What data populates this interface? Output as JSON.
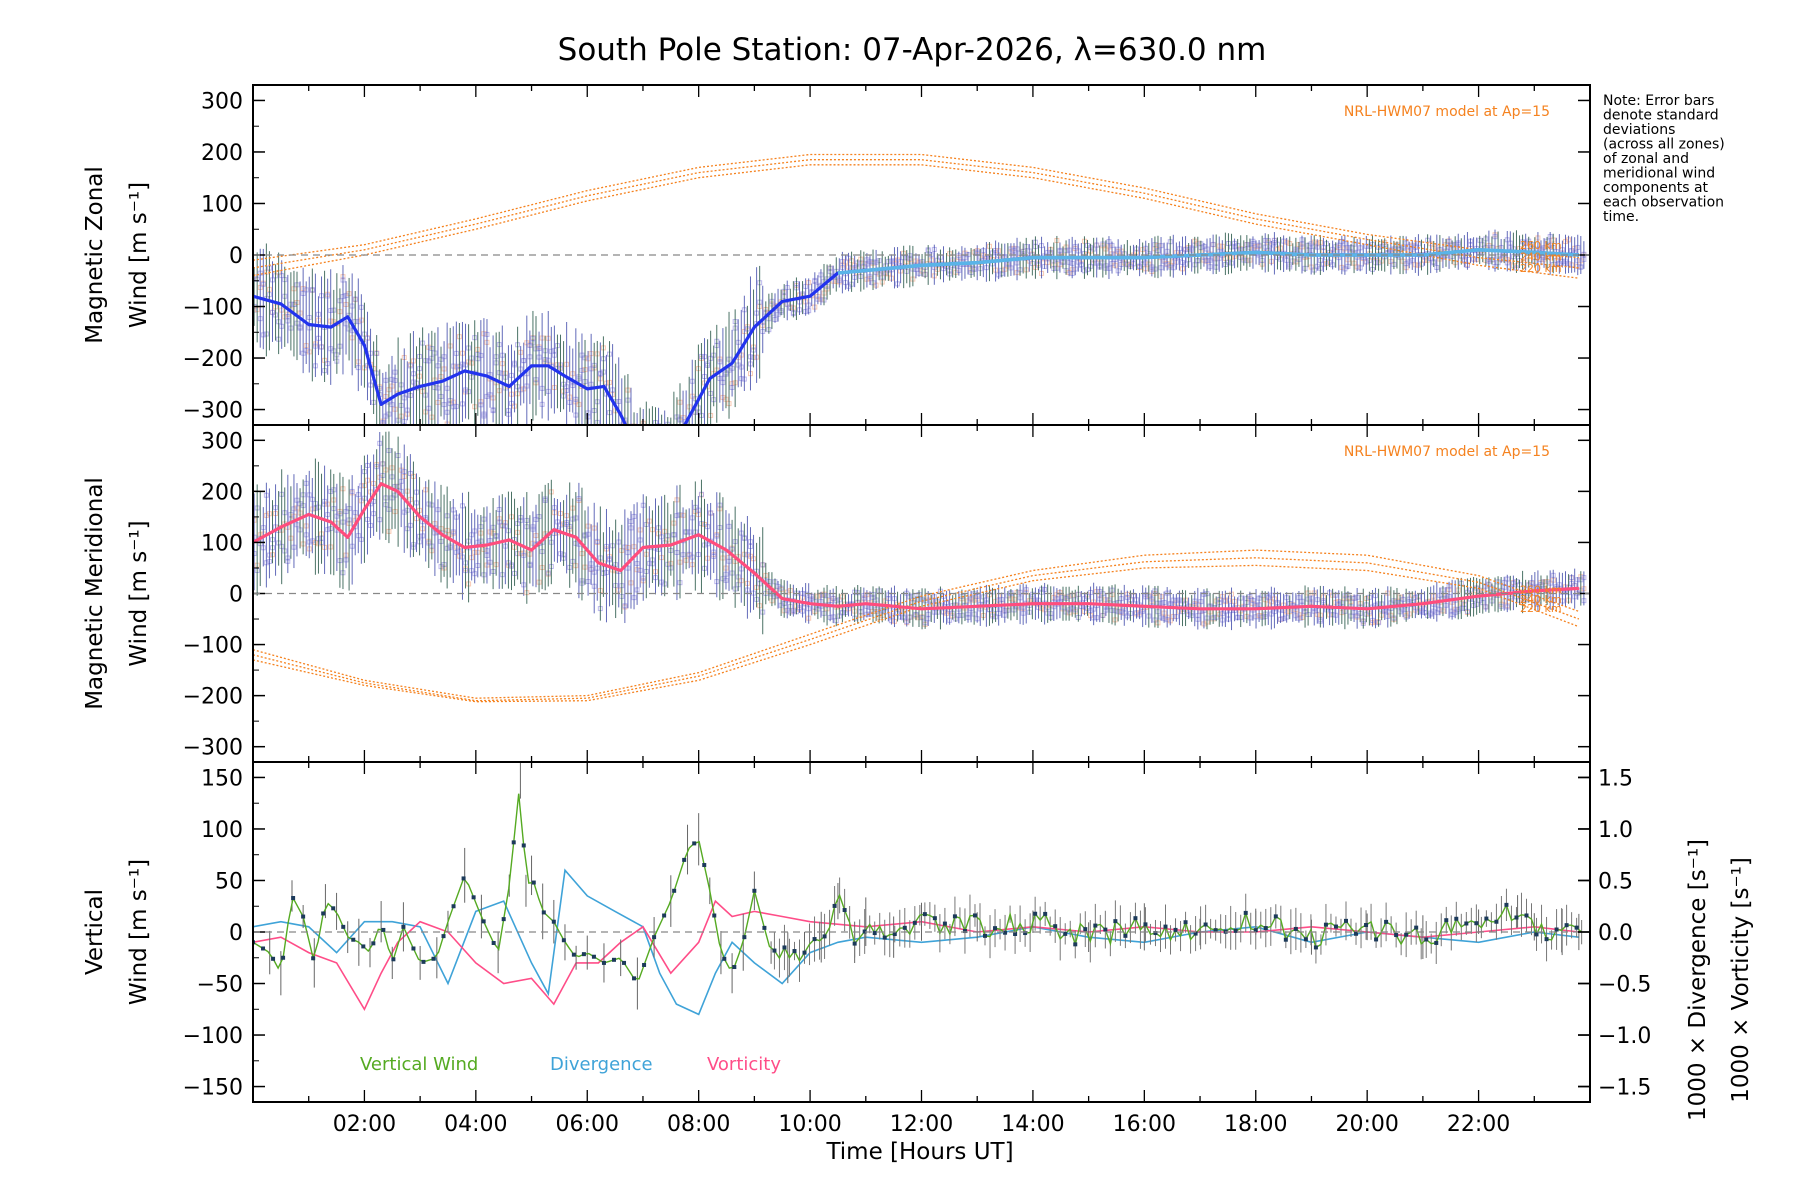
{
  "chart_data": {
    "type": "line",
    "title": "South Pole Station: 07-Apr-2026, λ=630.0 nm",
    "xlabel": "Time [Hours UT]",
    "xlim": [
      0,
      24
    ],
    "xticks": [
      2,
      4,
      6,
      8,
      10,
      12,
      14,
      16,
      18,
      20,
      22
    ],
    "xtick_labels": [
      "02:00",
      "04:00",
      "06:00",
      "08:00",
      "10:00",
      "12:00",
      "14:00",
      "16:00",
      "18:00",
      "20:00",
      "22:00"
    ],
    "note": [
      "Note: Error bars",
      "denote standard",
      "deviations",
      "(across all zones)",
      "of zonal and",
      "meridional wind",
      "components at",
      "each observation",
      "time."
    ],
    "colors": {
      "zonal": "#2233ee",
      "zonal_model": "#f5821f",
      "meridional": "#ff4d7d",
      "vertical": "#55aa22",
      "divergence": "#3fa3d8",
      "vorticity": "#ff4d88",
      "scatter": "#a7a0e8",
      "zone_fill": "#f7b89b"
    },
    "panels": [
      {
        "name": "zonal",
        "ylabel_line1": "Magnetic Zonal",
        "ylabel_line2": "Wind [m s⁻¹]",
        "ylim": [
          -330,
          330
        ],
        "yticks": [
          -300,
          -200,
          -100,
          0,
          100,
          200,
          300
        ],
        "ytick_labels": [
          "−300",
          "−200",
          "−100",
          "0",
          "100",
          "200",
          "300"
        ],
        "model_label": "NRL-HWM07 model at Ap=15",
        "model_altitudes": [
          "260 km",
          "240 km",
          "220 km"
        ],
        "series": [
          {
            "name": "Zonal wind (mean)",
            "x": [
              0,
              0.5,
              1.0,
              1.4,
              1.7,
              2.0,
              2.3,
              2.6,
              3.0,
              3.4,
              3.8,
              4.2,
              4.6,
              5.0,
              5.3,
              5.6,
              6.0,
              6.3,
              6.6,
              7.0,
              7.5,
              7.9,
              8.2,
              8.6,
              9.0,
              9.5,
              10.0,
              10.5,
              11.0,
              11.5,
              12.0,
              13.0,
              14.0,
              15.0,
              16.0,
              17.0,
              18.0,
              19.0,
              20.0,
              21.0,
              22.0,
              23.0,
              23.8
            ],
            "y": [
              -80,
              -95,
              -135,
              -140,
              -120,
              -175,
              -290,
              -270,
              -255,
              -245,
              -225,
              -235,
              -255,
              -215,
              -215,
              -235,
              -260,
              -255,
              -310,
              -400,
              -380,
              -300,
              -240,
              -210,
              -140,
              -90,
              -80,
              -35,
              -30,
              -25,
              -20,
              -15,
              -5,
              -5,
              -5,
              0,
              5,
              0,
              0,
              0,
              10,
              5,
              0
            ]
          },
          {
            "name": "NRL-HWM07 260 km",
            "x": [
              0,
              2,
              4,
              6,
              8,
              10,
              12,
              14,
              16,
              18,
              20,
              22,
              23.8
            ],
            "y": [
              -10,
              20,
              70,
              125,
              170,
              195,
              195,
              170,
              130,
              80,
              40,
              10,
              -5
            ]
          },
          {
            "name": "NRL-HWM07 240 km",
            "x": [
              0,
              2,
              4,
              6,
              8,
              10,
              12,
              14,
              16,
              18,
              20,
              22,
              23.8
            ],
            "y": [
              -25,
              10,
              60,
              115,
              160,
              185,
              185,
              160,
              120,
              70,
              30,
              -5,
              -25
            ]
          },
          {
            "name": "NRL-HWM07 220 km",
            "x": [
              0,
              2,
              4,
              6,
              8,
              10,
              12,
              14,
              16,
              18,
              20,
              22,
              23.8
            ],
            "y": [
              -40,
              0,
              50,
              105,
              150,
              175,
              175,
              150,
              110,
              60,
              20,
              -20,
              -45
            ]
          }
        ]
      },
      {
        "name": "meridional",
        "ylabel_line1": "Magnetic Meridional",
        "ylabel_line2": "Wind [m s⁻¹]",
        "ylim": [
          -330,
          330
        ],
        "yticks": [
          -300,
          -200,
          -100,
          0,
          100,
          200,
          300
        ],
        "ytick_labels": [
          "−300",
          "−200",
          "−100",
          "0",
          "100",
          "200",
          "300"
        ],
        "model_label": "NRL-HWM07 model at Ap=15",
        "model_altitudes": [
          "260 km",
          "240 km",
          "220 km"
        ],
        "series": [
          {
            "name": "Meridional wind (mean)",
            "x": [
              0,
              0.5,
              1.0,
              1.4,
              1.7,
              2.0,
              2.3,
              2.6,
              3.0,
              3.4,
              3.8,
              4.2,
              4.6,
              5.0,
              5.4,
              5.8,
              6.2,
              6.6,
              7.0,
              7.5,
              8.0,
              8.5,
              9.0,
              9.5,
              10.0,
              10.5,
              11.0,
              12.0,
              13.0,
              14.0,
              15.0,
              16.0,
              17.0,
              18.0,
              19.0,
              20.0,
              21.0,
              22.0,
              23.0,
              23.8
            ],
            "y": [
              100,
              130,
              155,
              140,
              110,
              165,
              215,
              200,
              150,
              115,
              90,
              95,
              105,
              85,
              125,
              110,
              60,
              45,
              90,
              95,
              115,
              85,
              40,
              -10,
              -20,
              -25,
              -20,
              -30,
              -25,
              -20,
              -20,
              -25,
              -30,
              -30,
              -25,
              -30,
              -20,
              -5,
              5,
              10
            ]
          },
          {
            "name": "NRL-HWM07 260 km",
            "x": [
              0,
              2,
              4,
              6,
              8,
              10,
              12,
              14,
              16,
              18,
              20,
              22,
              23.8
            ],
            "y": [
              -110,
              -170,
              -205,
              -200,
              -155,
              -80,
              -5,
              45,
              75,
              85,
              75,
              35,
              -35
            ]
          },
          {
            "name": "NRL-HWM07 240 km",
            "x": [
              0,
              2,
              4,
              6,
              8,
              10,
              12,
              14,
              16,
              18,
              20,
              22,
              23.8
            ],
            "y": [
              -120,
              -175,
              -210,
              -205,
              -162,
              -90,
              -15,
              35,
              62,
              70,
              60,
              22,
              -50
            ]
          },
          {
            "name": "NRL-HWM07 220 km",
            "x": [
              0,
              2,
              4,
              6,
              8,
              10,
              12,
              14,
              16,
              18,
              20,
              22,
              23.8
            ],
            "y": [
              -130,
              -180,
              -212,
              -210,
              -170,
              -100,
              -25,
              25,
              50,
              55,
              45,
              10,
              -65
            ]
          }
        ]
      },
      {
        "name": "vertical",
        "ylabel_line1": "Vertical",
        "ylabel_line2": "Wind [m s⁻¹]",
        "ylim": [
          -165,
          165
        ],
        "yticks": [
          -150,
          -100,
          -50,
          0,
          50,
          100,
          150
        ],
        "ytick_labels": [
          "−150",
          "−100",
          "−50",
          "0",
          "50",
          "100",
          "150"
        ],
        "y2lim": [
          -1.65,
          1.65
        ],
        "y2ticks": [
          -1.5,
          -1.0,
          -0.5,
          0.0,
          0.5,
          1.0,
          1.5
        ],
        "y2tick_labels": [
          "−1.5",
          "−1.0",
          "−0.5",
          "0.0",
          "0.5",
          "1.0",
          "1.5"
        ],
        "y2label_divergence": "1000 × Divergence [s⁻¹]",
        "y2label_vorticity": "1000 × Vorticity [s⁻¹]",
        "legend": [
          "Vertical Wind",
          "Divergence",
          "Vorticity"
        ],
        "series": [
          {
            "name": "Vertical Wind",
            "axis": "left",
            "x": [
              0,
              0.3,
              0.5,
              0.7,
              0.9,
              1.1,
              1.3,
              1.5,
              1.7,
              1.9,
              2.1,
              2.3,
              2.5,
              2.7,
              3.0,
              3.3,
              3.5,
              3.8,
              4.1,
              4.4,
              4.6,
              4.8,
              4.9,
              5.0,
              5.2,
              5.4,
              5.6,
              5.8,
              6.0,
              6.3,
              6.6,
              6.9,
              7.2,
              7.5,
              7.8,
              8.0,
              8.2,
              8.4,
              8.6,
              8.8,
              9.0,
              9.3,
              9.6,
              9.9,
              10.2,
              10.5,
              10.8,
              11.0,
              11.5,
              12.0,
              13.0,
              14.0,
              15.0,
              16.0,
              17.0,
              18.0,
              19.0,
              20.0,
              21.0,
              22.0,
              22.7,
              23.0,
              23.5,
              23.8
            ],
            "y": [
              -10,
              -20,
              -40,
              35,
              15,
              -30,
              30,
              20,
              -5,
              -10,
              -20,
              10,
              -30,
              5,
              -30,
              -25,
              10,
              55,
              15,
              -20,
              45,
              150,
              40,
              55,
              20,
              10,
              -10,
              -25,
              -20,
              -30,
              -25,
              -50,
              -5,
              30,
              80,
              90,
              40,
              -20,
              -40,
              -10,
              40,
              -20,
              -25,
              -15,
              -5,
              30,
              -10,
              10,
              -5,
              10,
              5,
              10,
              -5,
              5,
              0,
              10,
              -5,
              5,
              -5,
              10,
              20,
              5,
              0,
              0
            ]
          },
          {
            "name": "Divergence",
            "axis": "right",
            "x": [
              0,
              0.5,
              1.0,
              1.5,
              2.0,
              2.5,
              3.0,
              3.5,
              4.0,
              4.5,
              5.0,
              5.3,
              5.6,
              6.0,
              6.5,
              7.0,
              7.3,
              7.6,
              8.0,
              8.3,
              8.6,
              9.0,
              9.5,
              10.0,
              10.5,
              11.0,
              12.0,
              13.0,
              14.0,
              15.0,
              16.0,
              17.0,
              18.0,
              19.0,
              20.0,
              21.0,
              22.0,
              23.0,
              23.8
            ],
            "y": [
              0.05,
              0.1,
              0.05,
              -0.2,
              0.1,
              0.1,
              0.05,
              -0.5,
              0.2,
              0.3,
              -0.3,
              -0.6,
              0.6,
              0.35,
              0.2,
              0.05,
              -0.4,
              -0.7,
              -0.8,
              -0.4,
              -0.1,
              -0.3,
              -0.5,
              -0.2,
              -0.1,
              -0.05,
              -0.1,
              -0.05,
              0.05,
              -0.05,
              -0.1,
              0.0,
              0.05,
              -0.1,
              0.0,
              -0.05,
              -0.1,
              0.0,
              -0.05
            ]
          },
          {
            "name": "Vorticity",
            "axis": "right",
            "x": [
              0,
              0.5,
              1.0,
              1.5,
              2.0,
              2.3,
              2.6,
              3.0,
              3.5,
              4.0,
              4.5,
              5.0,
              5.4,
              5.8,
              6.2,
              6.6,
              7.0,
              7.5,
              8.0,
              8.3,
              8.6,
              9.0,
              9.5,
              10.0,
              11.0,
              12.0,
              13.0,
              14.0,
              15.0,
              16.0,
              17.0,
              18.0,
              19.0,
              20.0,
              21.0,
              22.0,
              23.0,
              23.8
            ],
            "y": [
              -0.1,
              -0.05,
              -0.2,
              -0.3,
              -0.75,
              -0.4,
              -0.1,
              0.1,
              0.0,
              -0.3,
              -0.5,
              -0.45,
              -0.7,
              -0.3,
              -0.3,
              -0.1,
              0.05,
              -0.4,
              -0.1,
              0.3,
              0.15,
              0.2,
              0.15,
              0.1,
              0.05,
              0.1,
              0.0,
              0.05,
              0.0,
              0.05,
              0.0,
              0.0,
              0.05,
              0.0,
              -0.05,
              0.0,
              0.05,
              0.0
            ]
          }
        ]
      }
    ]
  }
}
